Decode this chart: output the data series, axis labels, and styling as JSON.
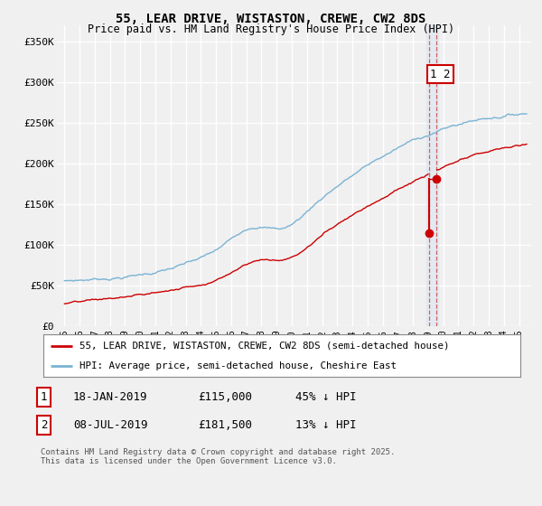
{
  "title": "55, LEAR DRIVE, WISTASTON, CREWE, CW2 8DS",
  "subtitle": "Price paid vs. HM Land Registry's House Price Index (HPI)",
  "ylabel_ticks": [
    "£0",
    "£50K",
    "£100K",
    "£150K",
    "£200K",
    "£250K",
    "£300K",
    "£350K"
  ],
  "ytick_values": [
    0,
    50000,
    100000,
    150000,
    200000,
    250000,
    300000,
    350000
  ],
  "ylim": [
    0,
    370000
  ],
  "xlim_start": 1994.5,
  "xlim_end": 2025.8,
  "hpi_color": "#7ab3d4",
  "price_color": "#cc0000",
  "vline_color": "#cc0000",
  "sale1_x": 2019.05,
  "sale2_x": 2019.52,
  "sale1_y": 115000,
  "sale2_y": 181500,
  "legend_label1": "55, LEAR DRIVE, WISTASTON, CREWE, CW2 8DS (semi-detached house)",
  "legend_label2": "HPI: Average price, semi-detached house, Cheshire East",
  "table_row1": [
    "1",
    "18-JAN-2019",
    "£115,000",
    "45% ↓ HPI"
  ],
  "table_row2": [
    "2",
    "08-JUL-2019",
    "£181,500",
    "13% ↓ HPI"
  ],
  "footnote": "Contains HM Land Registry data © Crown copyright and database right 2025.\nThis data is licensed under the Open Government Licence v3.0.",
  "plot_bg": "#f0f0f0",
  "fig_bg": "#f0f0f0",
  "grid_color": "#ffffff"
}
